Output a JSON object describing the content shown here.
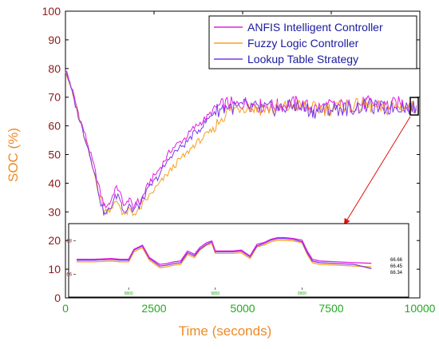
{
  "chart_data": {
    "type": "line",
    "title": "",
    "xlabel": "Time (seconds)",
    "ylabel": "SOC (%)",
    "xlim": [
      0,
      10000
    ],
    "ylim": [
      0,
      100
    ],
    "x_ticks": [
      "0",
      "2500",
      "5000",
      "7500",
      "10000"
    ],
    "y_ticks": [
      "0",
      "10",
      "20",
      "30",
      "40",
      "50",
      "60",
      "70",
      "80",
      "90",
      "100"
    ],
    "legend_position": "top-right",
    "grid": false,
    "series": [
      {
        "name": "ANFIS Intelligent Controller",
        "color": "#e020e0",
        "x": [
          0,
          200,
          400,
          600,
          800,
          1000,
          1100,
          1250,
          1400,
          1500,
          1600,
          1700,
          1800,
          1900,
          2000,
          2100,
          2200,
          2400,
          2600,
          2800,
          3000,
          3200,
          3400,
          3600,
          3800,
          4000,
          4200,
          4400,
          4600,
          4800,
          5000,
          5500,
          6000,
          6500,
          7000,
          7500,
          8000,
          8500,
          9000,
          9500,
          9900
        ],
        "values": [
          80,
          72,
          63,
          55,
          46,
          36,
          32,
          33,
          38,
          38,
          34,
          32,
          35,
          31,
          34,
          33,
          36,
          41,
          44,
          48,
          52,
          54,
          56,
          59,
          61,
          63,
          66,
          67,
          68,
          67,
          68,
          67,
          67,
          68,
          66,
          67,
          67,
          68,
          67,
          68,
          67
        ]
      },
      {
        "name": "Fuzzy Logic Controller",
        "color": "#f5a020",
        "x": [
          0,
          200,
          400,
          600,
          800,
          1000,
          1100,
          1250,
          1400,
          1500,
          1600,
          1700,
          1800,
          1900,
          2000,
          2100,
          2200,
          2400,
          2600,
          2800,
          3000,
          3200,
          3400,
          3600,
          3800,
          4000,
          4200,
          4400,
          4600,
          4800,
          5000,
          5500,
          6000,
          6500,
          7000,
          7500,
          8000,
          8500,
          9000,
          9500,
          9900
        ],
        "values": [
          80,
          71,
          62,
          53,
          44,
          34,
          30,
          31,
          33,
          33,
          30,
          29,
          31,
          29,
          30,
          31,
          33,
          36,
          39,
          42,
          45,
          48,
          50,
          53,
          55,
          57,
          59,
          63,
          65,
          66,
          67,
          66,
          66,
          67,
          66,
          66,
          67,
          67,
          66,
          67,
          66
        ]
      },
      {
        "name": "Lookup Table Strategy",
        "color": "#7a3ae8",
        "x": [
          0,
          200,
          400,
          600,
          800,
          1000,
          1100,
          1250,
          1400,
          1500,
          1600,
          1700,
          1800,
          1900,
          2000,
          2100,
          2200,
          2400,
          2600,
          2800,
          3000,
          3200,
          3400,
          3600,
          3800,
          4000,
          4200,
          4400,
          4600,
          4800,
          5000,
          5500,
          6000,
          6500,
          7000,
          7500,
          8000,
          8500,
          9000,
          9500,
          9900
        ],
        "values": [
          80,
          71,
          62,
          54,
          45,
          33,
          29,
          31,
          35,
          36,
          32,
          30,
          33,
          30,
          32,
          32,
          35,
          39,
          42,
          46,
          50,
          52,
          54,
          57,
          59,
          62,
          65,
          66,
          67,
          66,
          67,
          66,
          66,
          67,
          65,
          66,
          66,
          67,
          66,
          67,
          66
        ]
      }
    ],
    "inset": {
      "x_ticks": [
        "9800",
        "9850",
        "9900"
      ],
      "y_ticks": [
        "66",
        "68"
      ],
      "xlim": [
        9770,
        9950
      ],
      "ylim": [
        65.5,
        68.8
      ],
      "end_labels": [
        "66.66",
        "66.45",
        "66.34"
      ],
      "x": [
        9770,
        9780,
        9790,
        9795,
        9800,
        9803,
        9808,
        9812,
        9818,
        9822,
        9826,
        9830,
        9834,
        9838,
        9841,
        9845,
        9848,
        9850,
        9855,
        9860,
        9865,
        9870,
        9874,
        9878,
        9882,
        9886,
        9890,
        9895,
        9900,
        9903,
        9906,
        9910,
        9920,
        9930,
        9940
      ],
      "series": [
        {
          "name": "ANFIS Intelligent Controller",
          "color": "#e020e0",
          "values": [
            66.9,
            66.9,
            66.95,
            66.9,
            66.9,
            67.5,
            67.75,
            67.0,
            66.6,
            66.65,
            66.75,
            66.8,
            67.4,
            67.2,
            67.6,
            67.9,
            68.0,
            67.4,
            67.4,
            67.4,
            67.45,
            67.1,
            67.8,
            67.9,
            68.1,
            68.2,
            68.2,
            68.15,
            68.05,
            67.4,
            66.9,
            66.8,
            66.75,
            66.7,
            66.66
          ]
        },
        {
          "name": "Fuzzy Logic Controller",
          "color": "#f5a020",
          "values": [
            66.75,
            66.75,
            66.8,
            66.75,
            66.75,
            67.35,
            67.6,
            66.85,
            66.4,
            66.45,
            66.55,
            66.6,
            67.2,
            67.0,
            67.45,
            67.75,
            67.85,
            67.25,
            67.25,
            67.25,
            67.3,
            66.95,
            67.65,
            67.75,
            67.95,
            68.05,
            68.05,
            68.0,
            67.9,
            67.2,
            66.7,
            66.6,
            66.55,
            66.5,
            66.45
          ]
        },
        {
          "name": "Lookup Table Strategy",
          "color": "#7a3ae8",
          "values": [
            66.85,
            66.85,
            66.9,
            66.85,
            66.85,
            67.45,
            67.7,
            66.95,
            66.5,
            66.55,
            66.65,
            66.7,
            67.3,
            67.1,
            67.5,
            67.8,
            67.95,
            67.35,
            67.35,
            67.35,
            67.4,
            67.05,
            67.7,
            67.85,
            68.05,
            68.15,
            68.15,
            68.1,
            67.95,
            67.3,
            66.8,
            66.7,
            66.65,
            66.6,
            66.34
          ]
        }
      ]
    }
  }
}
